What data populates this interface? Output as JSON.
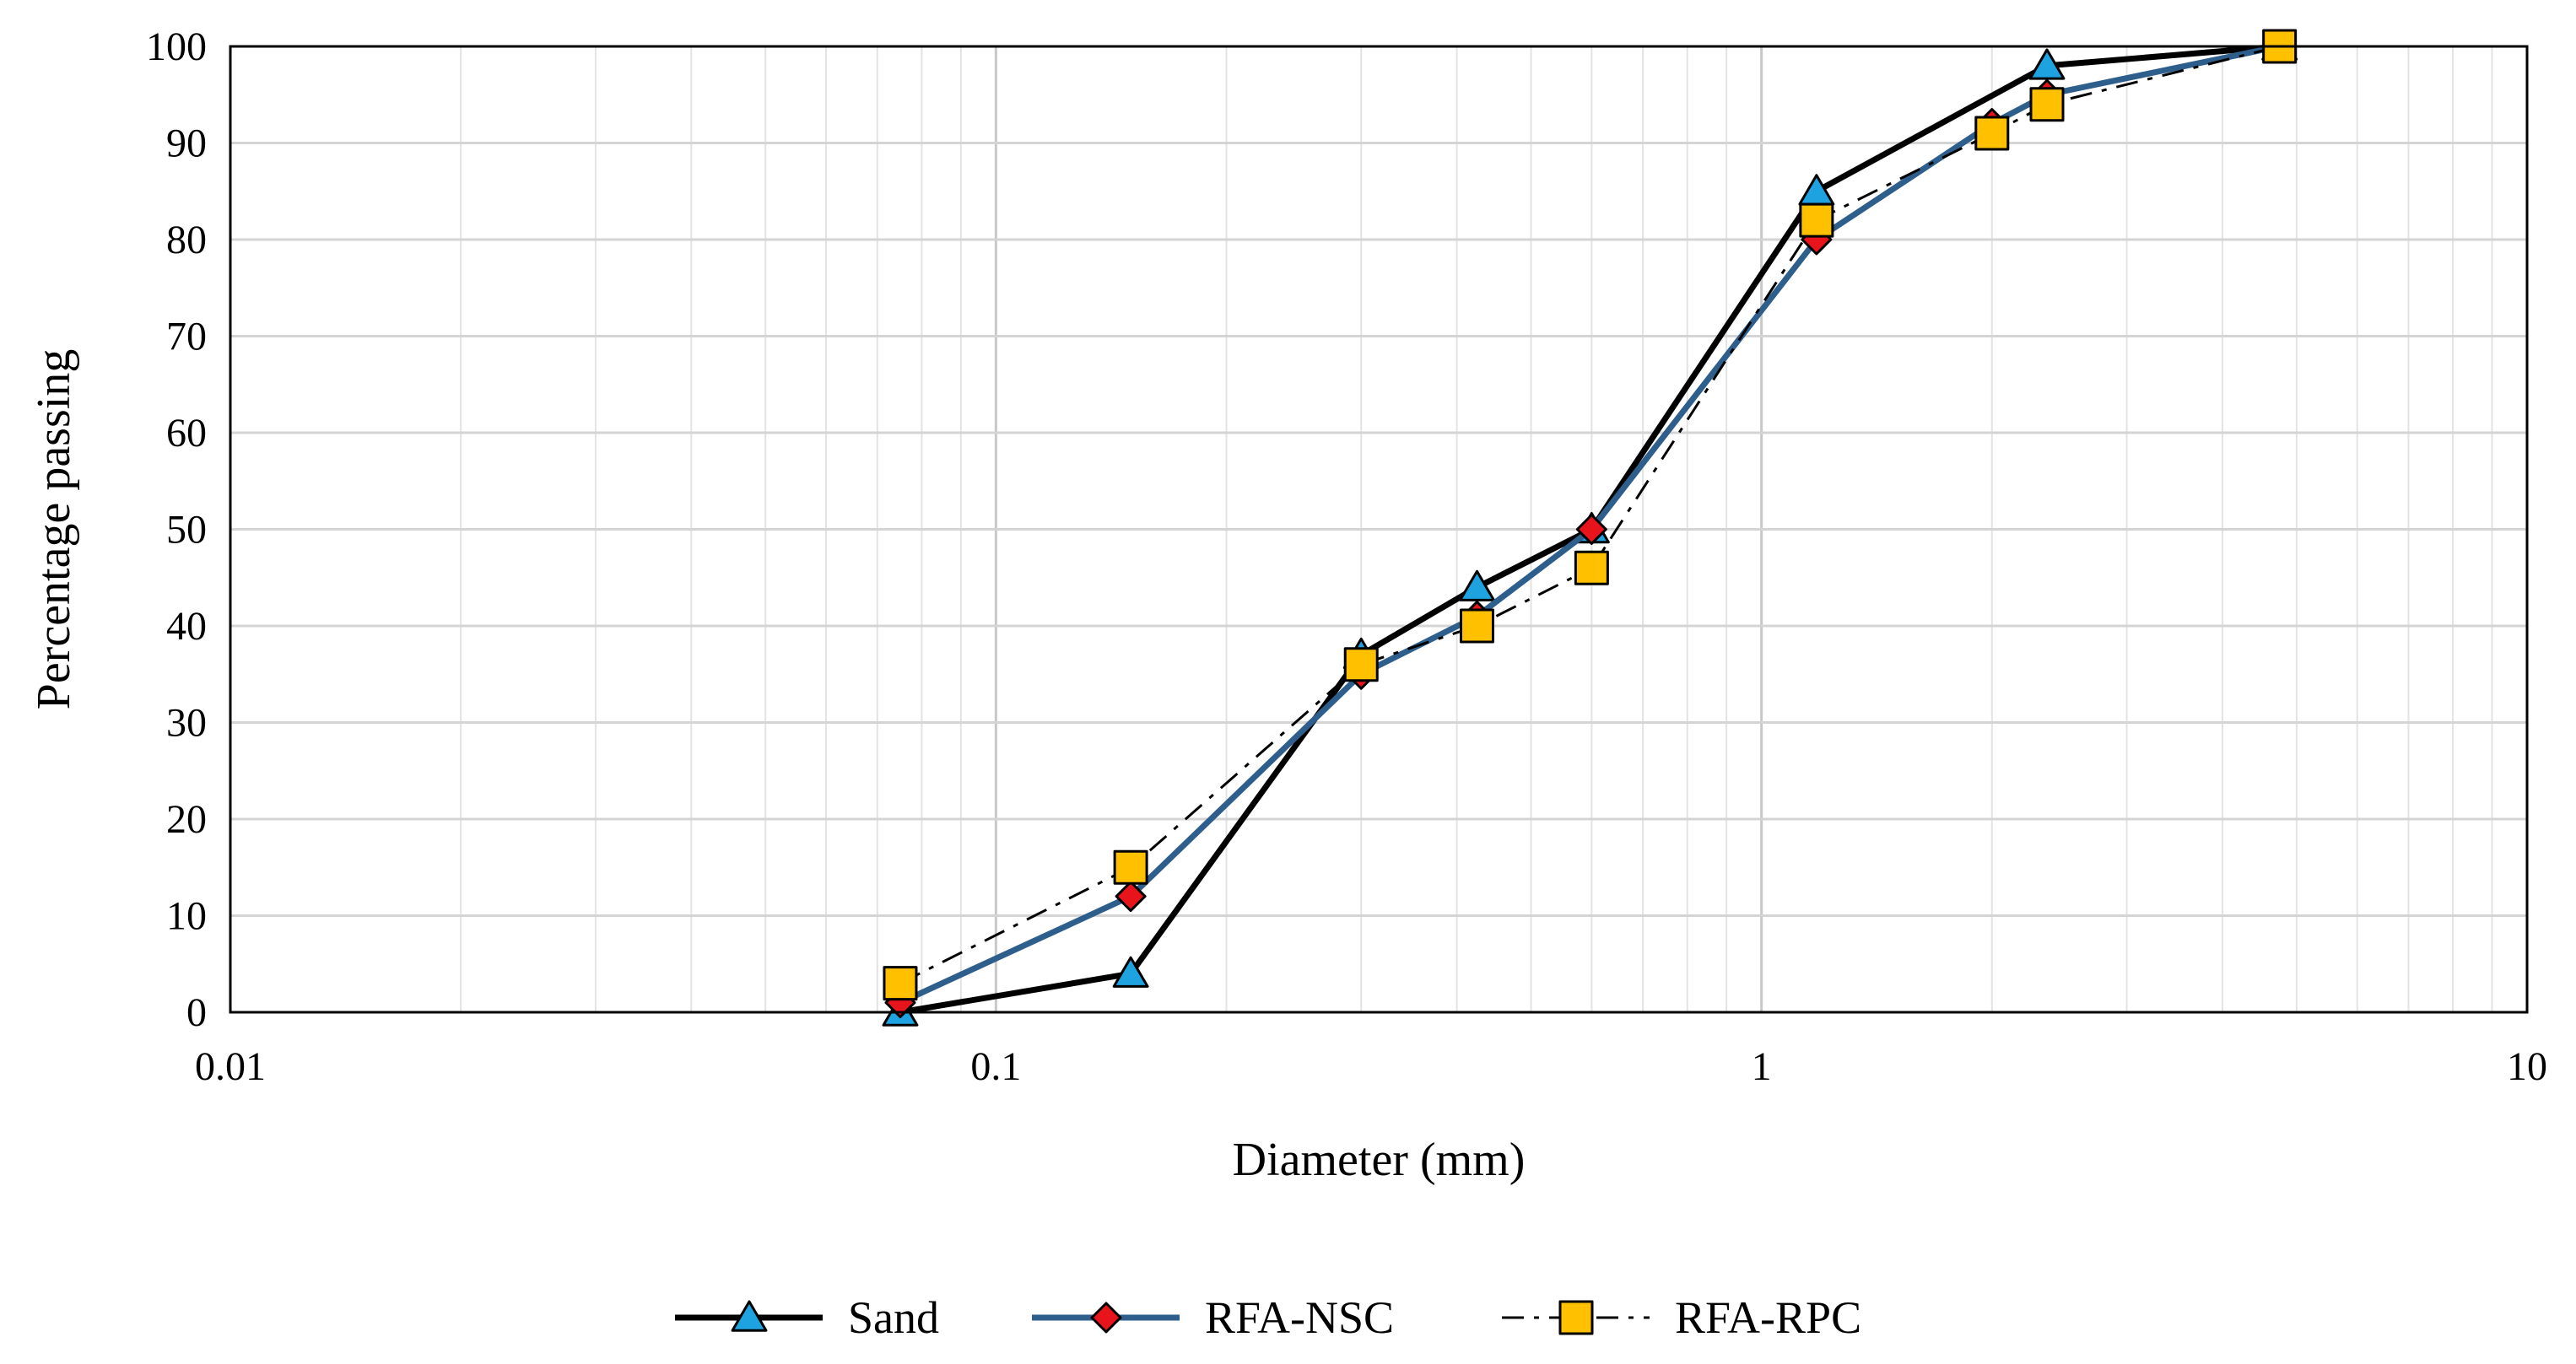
{
  "chart_data": {
    "type": "line",
    "title": "",
    "xlabel": "Diameter  (mm)",
    "ylabel": "Percentage passing",
    "xscale": "log",
    "xlim": [
      0.01,
      10
    ],
    "ylim": [
      0,
      100
    ],
    "xticks": [
      "0.01",
      "0.1",
      "1",
      "10"
    ],
    "yticks": [
      "0",
      "10",
      "20",
      "30",
      "40",
      "50",
      "60",
      "70",
      "80",
      "90",
      "100"
    ],
    "grid": true,
    "legend_position": "bottom",
    "series": [
      {
        "name": "Sand",
        "x": [
          0.075,
          0.15,
          0.3,
          0.425,
          0.6,
          1.18,
          2.36,
          4.75
        ],
        "y": [
          0,
          4,
          37,
          44,
          50,
          85,
          98,
          100
        ],
        "color": "#000000",
        "marker": "triangle",
        "marker_color": "#1fa3e0",
        "line_style": "solid"
      },
      {
        "name": "RFA-NSC",
        "x": [
          0.075,
          0.15,
          0.3,
          0.425,
          0.6,
          1.18,
          2.0,
          2.36,
          4.75
        ],
        "y": [
          1,
          12,
          35,
          41,
          50,
          80,
          92,
          95,
          100
        ],
        "color": "#2e5f8c",
        "marker": "diamond",
        "marker_color": "#e8141c",
        "line_style": "solid"
      },
      {
        "name": "RFA-RPC",
        "x": [
          0.075,
          0.15,
          0.3,
          0.425,
          0.6,
          1.18,
          2.0,
          2.36,
          4.75
        ],
        "y": [
          3,
          15,
          36,
          40,
          46,
          82,
          91,
          94,
          100
        ],
        "color": "#000000",
        "marker": "square",
        "marker_color": "#ffc000",
        "line_style": "dashdot"
      }
    ]
  }
}
